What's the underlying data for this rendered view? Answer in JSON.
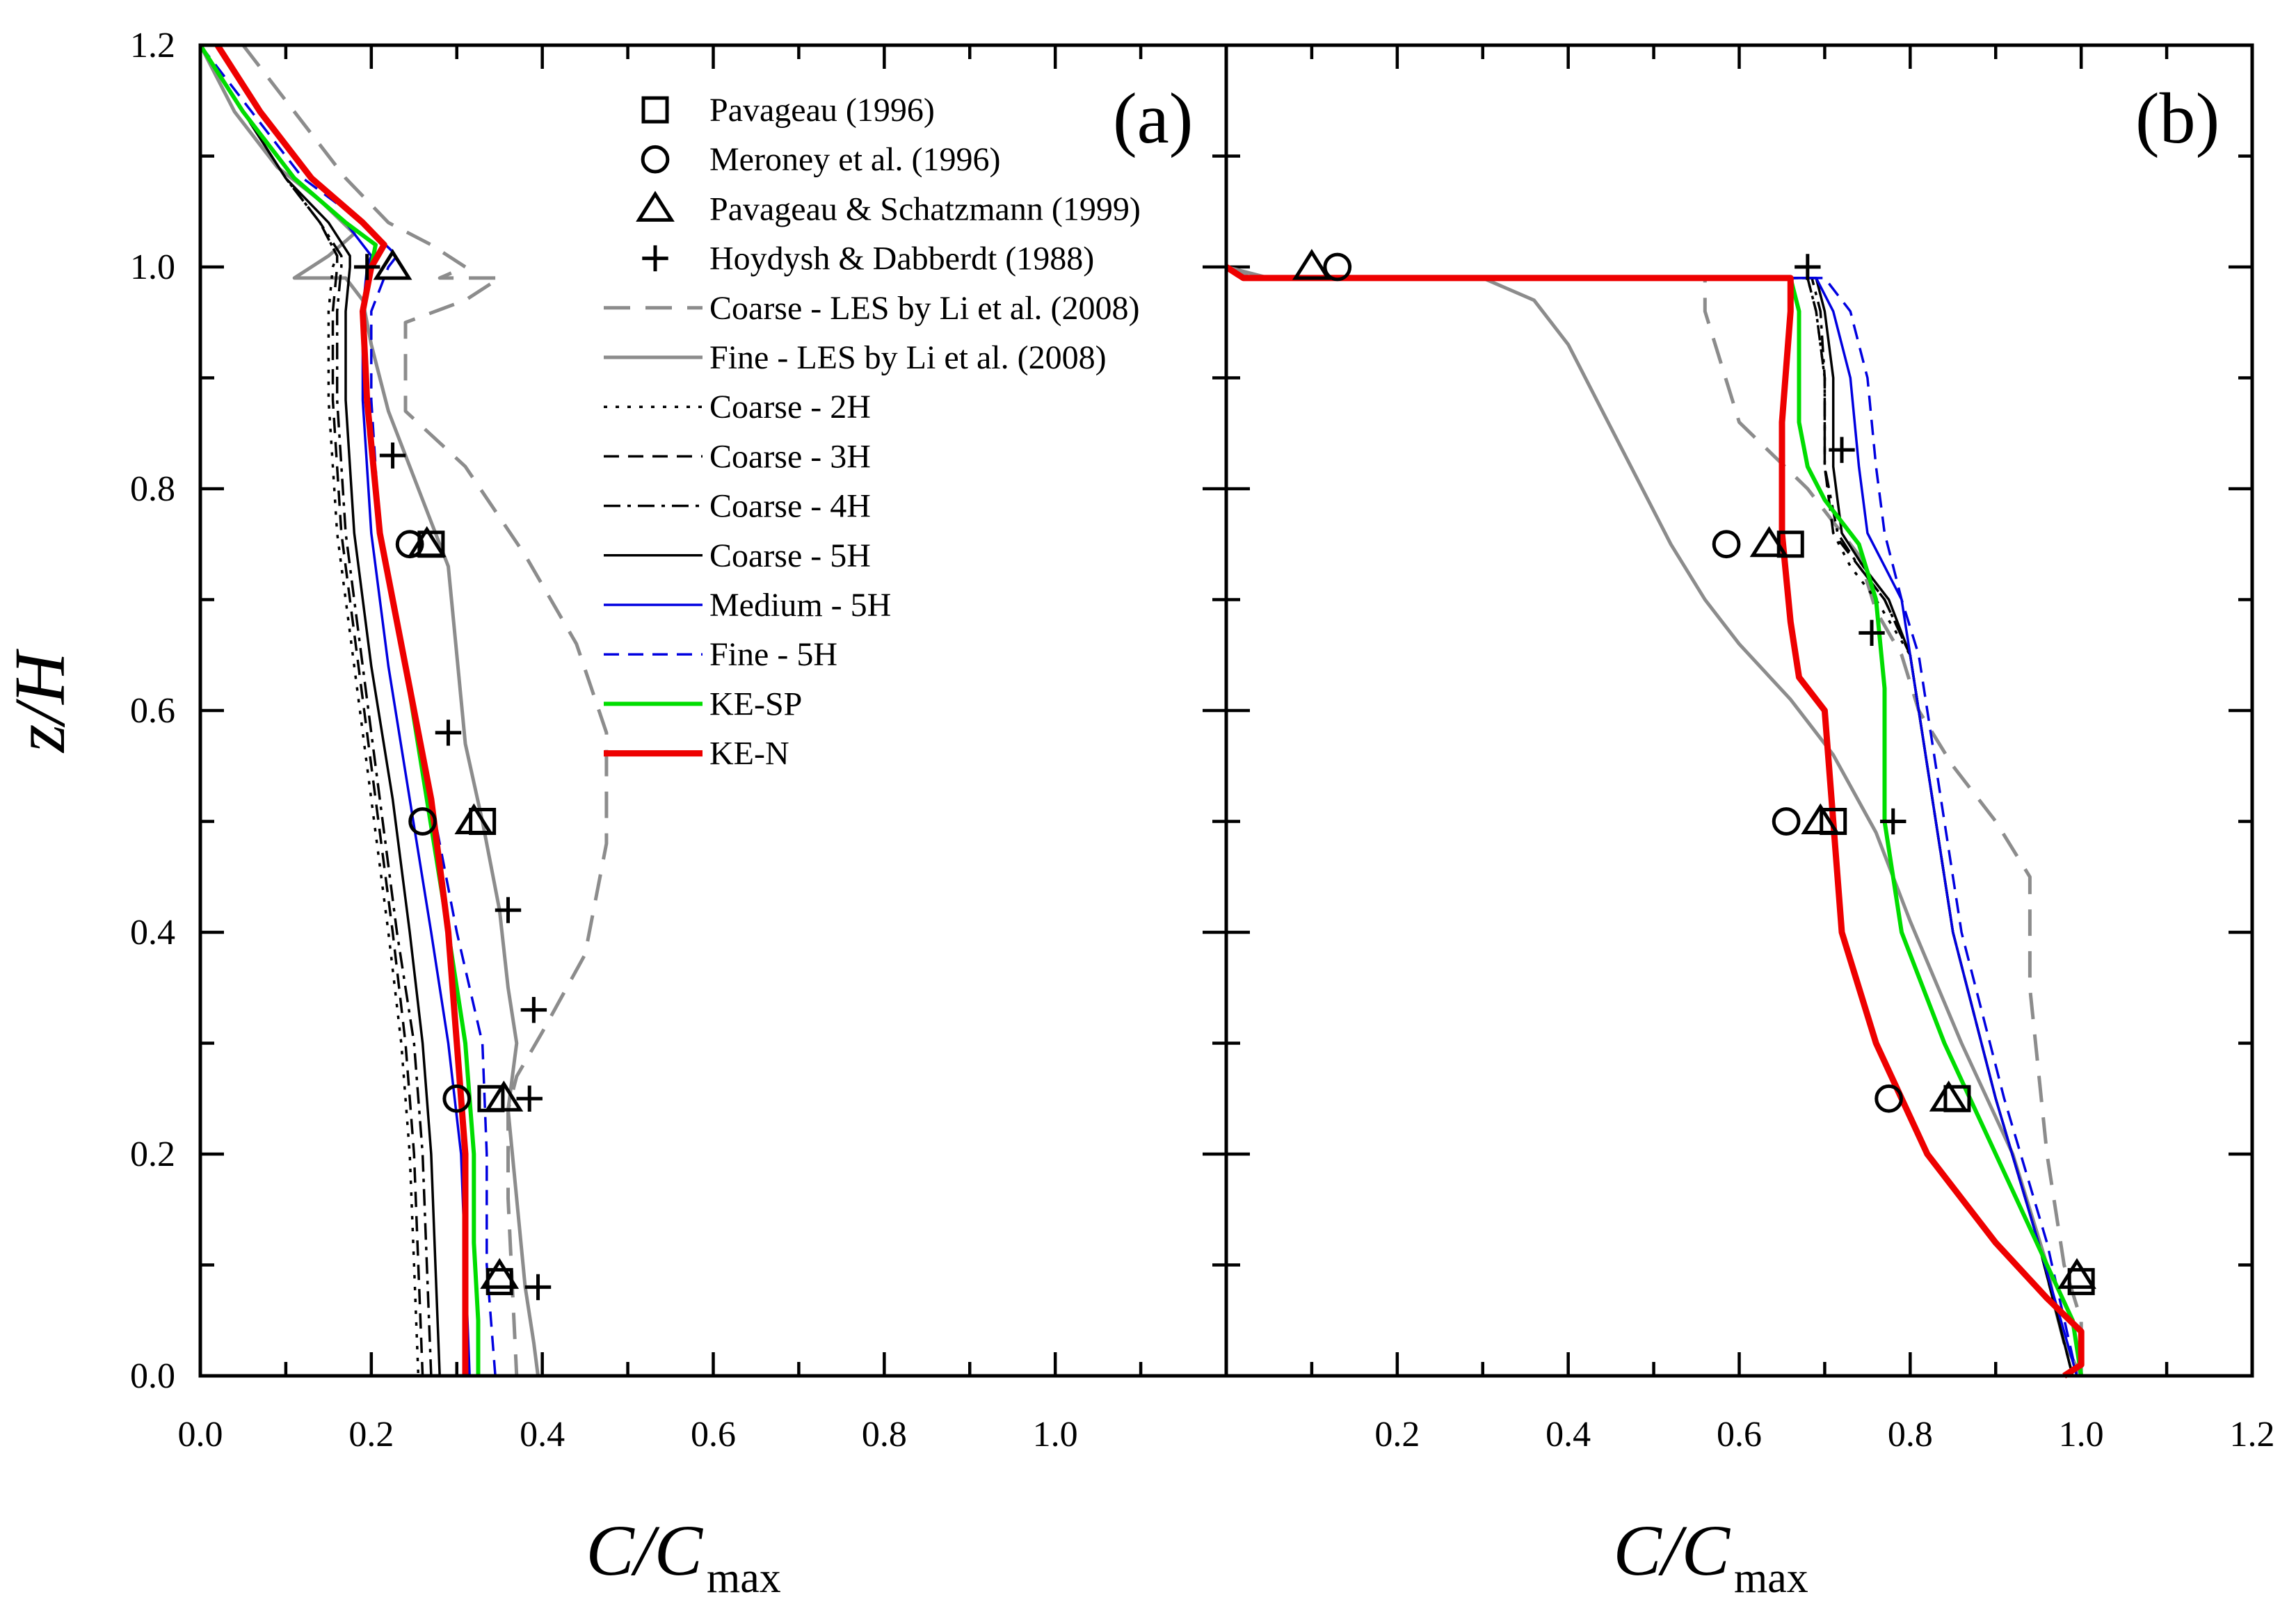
{
  "chart_data": [
    {
      "type": "line",
      "panel_label": "(a)",
      "xlabel": "C/C",
      "xlabel_subscript": "max",
      "ylabel": "z/H",
      "xlim": [
        0.0,
        1.2
      ],
      "ylim": [
        0.0,
        1.2
      ],
      "x_ticks": [
        "0.0",
        "0.2",
        "0.4",
        "0.6",
        "0.8",
        "1.0"
      ],
      "y_ticks": [
        "0.0",
        "0.2",
        "0.4",
        "0.6",
        "0.8",
        "1.0",
        "1.2"
      ],
      "legend": [
        {
          "name": "Pavageau (1996)",
          "kind": "marker",
          "marker": "square"
        },
        {
          "name": "Meroney et al. (1996)",
          "kind": "marker",
          "marker": "circle"
        },
        {
          "name": "Pavageau & Schatzmann (1999)",
          "kind": "marker",
          "marker": "triangle"
        },
        {
          "name": "Hoydysh & Dabberdt (1988)",
          "kind": "marker",
          "marker": "plus"
        },
        {
          "name": "Coarse - LES by Li et al. (2008)",
          "kind": "line",
          "color": "#8c8c8c",
          "dash": "long",
          "width": 5
        },
        {
          "name": "Fine - LES by Li et al. (2008)",
          "kind": "line",
          "color": "#8c8c8c",
          "dash": "solid",
          "width": 5
        },
        {
          "name": "Coarse - 2H",
          "kind": "line",
          "color": "#000000",
          "dash": "dot",
          "width": 3.5
        },
        {
          "name": "Coarse - 3H",
          "kind": "line",
          "color": "#000000",
          "dash": "dash",
          "width": 3.5
        },
        {
          "name": "Coarse - 4H",
          "kind": "line",
          "color": "#000000",
          "dash": "dashdot",
          "width": 3.5
        },
        {
          "name": "Coarse - 5H",
          "kind": "line",
          "color": "#000000",
          "dash": "solid",
          "width": 3.5
        },
        {
          "name": "Medium - 5H",
          "kind": "line",
          "color": "#0000e0",
          "dash": "solid",
          "width": 3.5
        },
        {
          "name": "Fine - 5H",
          "kind": "line",
          "color": "#0000e0",
          "dash": "dash",
          "width": 3.5
        },
        {
          "name": "KE-SP",
          "kind": "line",
          "color": "#00dd00",
          "dash": "solid",
          "width": 6
        },
        {
          "name": "KE-N",
          "kind": "line",
          "color": "#ee0000",
          "dash": "solid",
          "width": 9
        }
      ],
      "markers": {
        "Pavageau (1996)": [
          [
            0.27,
            0.75
          ],
          [
            0.33,
            0.5
          ],
          [
            0.34,
            0.25
          ],
          [
            0.35,
            0.085
          ]
        ],
        "Meroney et al. (1996)": [
          [
            0.245,
            0.75
          ],
          [
            0.26,
            0.5
          ],
          [
            0.3,
            0.25
          ]
        ],
        "Pavageau & Schatzmann (1999)": [
          [
            0.265,
            0.75
          ],
          [
            0.32,
            0.5
          ],
          [
            0.355,
            0.25
          ],
          [
            0.35,
            0.09
          ],
          [
            0.225,
            1.0
          ]
        ],
        "Hoydysh & Dabberdt (1988)": [
          [
            0.225,
            0.83
          ],
          [
            0.29,
            0.58
          ],
          [
            0.36,
            0.42
          ],
          [
            0.39,
            0.33
          ],
          [
            0.385,
            0.25
          ],
          [
            0.395,
            0.08
          ],
          [
            0.195,
            1.0
          ]
        ]
      },
      "series": [
        {
          "name": "Coarse - LES by Li et al. (2008)",
          "x": [
            0.05,
            0.11,
            0.17,
            0.22,
            0.27,
            0.31,
            0.28,
            0.35,
            0.31,
            0.24,
            0.24,
            0.31,
            0.38,
            0.44,
            0.475,
            0.475,
            0.45,
            0.4,
            0.37,
            0.36,
            0.36,
            0.365,
            0.37
          ],
          "y": [
            1.2,
            1.14,
            1.08,
            1.04,
            1.02,
            1.0,
            0.99,
            0.99,
            0.97,
            0.95,
            0.87,
            0.82,
            0.74,
            0.66,
            0.58,
            0.48,
            0.38,
            0.31,
            0.27,
            0.24,
            0.16,
            0.08,
            0.0
          ]
        },
        {
          "name": "Fine - LES by Li et al. (2008)",
          "x": [
            0.0,
            0.04,
            0.09,
            0.14,
            0.18,
            0.15,
            0.11,
            0.17,
            0.19,
            0.2,
            0.22,
            0.25,
            0.29,
            0.3,
            0.31,
            0.33,
            0.35,
            0.36,
            0.37,
            0.36,
            0.37,
            0.38,
            0.39,
            0.395
          ],
          "y": [
            1.2,
            1.14,
            1.09,
            1.06,
            1.03,
            1.01,
            0.99,
            0.99,
            0.97,
            0.93,
            0.87,
            0.81,
            0.73,
            0.65,
            0.57,
            0.5,
            0.42,
            0.35,
            0.3,
            0.24,
            0.16,
            0.08,
            0.03,
            0.0
          ]
        },
        {
          "name": "Coarse - 2H",
          "x": [
            0.0,
            0.05,
            0.1,
            0.14,
            0.16,
            0.155,
            0.15,
            0.15,
            0.16,
            0.18,
            0.2,
            0.22,
            0.235,
            0.245,
            0.25,
            0.255
          ],
          "y": [
            1.2,
            1.14,
            1.08,
            1.04,
            1.01,
            1.0,
            0.96,
            0.88,
            0.76,
            0.64,
            0.52,
            0.4,
            0.3,
            0.2,
            0.1,
            0.0
          ]
        },
        {
          "name": "Coarse - 3H",
          "x": [
            0.0,
            0.05,
            0.1,
            0.14,
            0.16,
            0.16,
            0.155,
            0.155,
            0.165,
            0.185,
            0.205,
            0.225,
            0.24,
            0.25,
            0.255,
            0.26
          ],
          "y": [
            1.2,
            1.14,
            1.08,
            1.04,
            1.01,
            1.0,
            0.96,
            0.88,
            0.76,
            0.64,
            0.52,
            0.4,
            0.3,
            0.2,
            0.1,
            0.0
          ]
        },
        {
          "name": "Coarse - 4H",
          "x": [
            0.0,
            0.05,
            0.1,
            0.14,
            0.165,
            0.165,
            0.16,
            0.16,
            0.17,
            0.19,
            0.21,
            0.23,
            0.25,
            0.26,
            0.265,
            0.27
          ],
          "y": [
            1.2,
            1.14,
            1.08,
            1.04,
            1.01,
            1.0,
            0.96,
            0.88,
            0.76,
            0.64,
            0.52,
            0.4,
            0.3,
            0.2,
            0.1,
            0.0
          ]
        },
        {
          "name": "Coarse - 5H",
          "x": [
            0.0,
            0.05,
            0.1,
            0.15,
            0.175,
            0.175,
            0.17,
            0.17,
            0.18,
            0.2,
            0.225,
            0.245,
            0.26,
            0.27,
            0.275,
            0.28
          ],
          "y": [
            1.2,
            1.14,
            1.08,
            1.04,
            1.01,
            1.0,
            0.96,
            0.88,
            0.76,
            0.64,
            0.52,
            0.4,
            0.3,
            0.2,
            0.1,
            0.0
          ]
        },
        {
          "name": "Medium - 5H",
          "x": [
            0.0,
            0.05,
            0.11,
            0.17,
            0.2,
            0.195,
            0.19,
            0.19,
            0.2,
            0.22,
            0.245,
            0.27,
            0.29,
            0.305,
            0.31,
            0.315
          ],
          "y": [
            1.2,
            1.14,
            1.08,
            1.04,
            1.01,
            1.0,
            0.96,
            0.88,
            0.76,
            0.64,
            0.52,
            0.4,
            0.3,
            0.2,
            0.1,
            0.0
          ]
        },
        {
          "name": "Fine - 5H",
          "x": [
            0.0,
            0.06,
            0.12,
            0.19,
            0.23,
            0.22,
            0.2,
            0.2,
            0.21,
            0.24,
            0.27,
            0.3,
            0.33,
            0.335,
            0.335,
            0.34,
            0.345
          ],
          "y": [
            1.2,
            1.14,
            1.08,
            1.04,
            1.01,
            1.0,
            0.96,
            0.88,
            0.76,
            0.64,
            0.52,
            0.4,
            0.3,
            0.2,
            0.1,
            0.05,
            0.0
          ]
        },
        {
          "name": "KE-SP",
          "x": [
            0.0,
            0.05,
            0.11,
            0.17,
            0.205,
            0.2,
            0.19,
            0.195,
            0.21,
            0.24,
            0.265,
            0.29,
            0.31,
            0.32,
            0.32,
            0.325,
            0.325
          ],
          "y": [
            1.2,
            1.14,
            1.08,
            1.04,
            1.02,
            1.0,
            0.96,
            0.88,
            0.76,
            0.64,
            0.52,
            0.4,
            0.3,
            0.2,
            0.12,
            0.05,
            0.0
          ]
        },
        {
          "name": "KE-N",
          "x": [
            0.02,
            0.07,
            0.13,
            0.19,
            0.215,
            0.2,
            0.19,
            0.195,
            0.21,
            0.24,
            0.27,
            0.29,
            0.3,
            0.31,
            0.31,
            0.31
          ],
          "y": [
            1.2,
            1.14,
            1.08,
            1.04,
            1.02,
            1.0,
            0.96,
            0.88,
            0.76,
            0.64,
            0.52,
            0.4,
            0.3,
            0.2,
            0.1,
            0.0
          ]
        }
      ]
    },
    {
      "type": "line",
      "panel_label": "(b)",
      "xlabel": "C/C",
      "xlabel_subscript": "max",
      "xlim": [
        0.0,
        1.2
      ],
      "ylim": [
        0.0,
        1.2
      ],
      "x_ticks": [
        "0.2",
        "0.4",
        "0.6",
        "0.8",
        "1.0",
        "1.2"
      ],
      "markers": {
        "Pavageau (1996)": [
          [
            0.66,
            0.75
          ],
          [
            0.71,
            0.5
          ],
          [
            0.855,
            0.25
          ],
          [
            1.0,
            0.085
          ]
        ],
        "Meroney et al. (1996)": [
          [
            0.585,
            0.75
          ],
          [
            0.655,
            0.5
          ],
          [
            0.775,
            0.25
          ],
          [
            0.13,
            1.0
          ]
        ],
        "Pavageau & Schatzmann (1999)": [
          [
            0.635,
            0.75
          ],
          [
            0.695,
            0.5
          ],
          [
            0.845,
            0.25
          ],
          [
            0.995,
            0.09
          ],
          [
            0.1,
            1.0
          ]
        ],
        "Hoydysh & Dabberdt (1988)": [
          [
            0.68,
            1.0
          ],
          [
            0.72,
            0.835
          ],
          [
            0.755,
            0.67
          ],
          [
            0.78,
            0.5
          ]
        ]
      },
      "series": [
        {
          "name": "Coarse - LES by Li et al. (2008)",
          "x": [
            0.0,
            0.03,
            0.56,
            0.56,
            0.6,
            0.68,
            0.74,
            0.76,
            0.79,
            0.81,
            0.85,
            0.9,
            0.94,
            0.94,
            0.96,
            0.98,
            1.0,
            1.0
          ],
          "y": [
            1.0,
            0.99,
            0.99,
            0.96,
            0.86,
            0.8,
            0.74,
            0.69,
            0.65,
            0.6,
            0.55,
            0.5,
            0.45,
            0.35,
            0.2,
            0.1,
            0.05,
            0.0
          ]
        },
        {
          "name": "Fine - LES by Li et al. (2008)",
          "x": [
            0.0,
            0.05,
            0.3,
            0.36,
            0.4,
            0.44,
            0.48,
            0.52,
            0.56,
            0.6,
            0.66,
            0.71,
            0.76,
            0.8,
            0.86,
            0.92,
            0.96,
            0.97,
            0.98,
            1.0
          ],
          "y": [
            1.0,
            0.99,
            0.99,
            0.97,
            0.93,
            0.87,
            0.81,
            0.75,
            0.7,
            0.66,
            0.61,
            0.56,
            0.49,
            0.41,
            0.3,
            0.2,
            0.1,
            0.06,
            0.03,
            0.0
          ]
        },
        {
          "name": "Coarse - 2H",
          "x": [
            0.0,
            0.02,
            0.68,
            0.69,
            0.7,
            0.7,
            0.71,
            0.73,
            0.76,
            0.8,
            0.82,
            0.85,
            0.9,
            0.95,
            0.99
          ],
          "y": [
            1.0,
            0.99,
            0.99,
            0.96,
            0.9,
            0.82,
            0.76,
            0.73,
            0.7,
            0.65,
            0.55,
            0.4,
            0.25,
            0.12,
            0.0
          ]
        },
        {
          "name": "Coarse - 3H",
          "x": [
            0.0,
            0.02,
            0.68,
            0.69,
            0.7,
            0.7,
            0.71,
            0.74,
            0.77,
            0.8,
            0.82,
            0.85,
            0.9,
            0.95,
            0.99
          ],
          "y": [
            1.0,
            0.99,
            0.99,
            0.96,
            0.9,
            0.82,
            0.76,
            0.73,
            0.7,
            0.65,
            0.55,
            0.4,
            0.25,
            0.12,
            0.0
          ]
        },
        {
          "name": "Coarse - 4H",
          "x": [
            0.0,
            0.02,
            0.685,
            0.695,
            0.7,
            0.7,
            0.715,
            0.74,
            0.77,
            0.8,
            0.82,
            0.85,
            0.9,
            0.95,
            0.99
          ],
          "y": [
            1.0,
            0.99,
            0.99,
            0.96,
            0.9,
            0.82,
            0.76,
            0.73,
            0.7,
            0.65,
            0.55,
            0.4,
            0.25,
            0.12,
            0.0
          ]
        },
        {
          "name": "Coarse - 5H",
          "x": [
            0.0,
            0.02,
            0.69,
            0.7,
            0.71,
            0.71,
            0.72,
            0.745,
            0.775,
            0.8,
            0.82,
            0.85,
            0.9,
            0.95,
            0.99
          ],
          "y": [
            1.0,
            0.99,
            0.99,
            0.96,
            0.9,
            0.82,
            0.76,
            0.73,
            0.7,
            0.65,
            0.55,
            0.4,
            0.25,
            0.12,
            0.0
          ]
        },
        {
          "name": "Medium - 5H",
          "x": [
            0.0,
            0.02,
            0.69,
            0.71,
            0.73,
            0.74,
            0.75,
            0.77,
            0.79,
            0.8,
            0.82,
            0.85,
            0.9,
            0.95,
            0.995
          ],
          "y": [
            1.0,
            0.99,
            0.99,
            0.96,
            0.9,
            0.82,
            0.76,
            0.73,
            0.7,
            0.65,
            0.55,
            0.4,
            0.25,
            0.12,
            0.0
          ]
        },
        {
          "name": "Fine - 5H",
          "x": [
            0.0,
            0.02,
            0.7,
            0.73,
            0.75,
            0.76,
            0.77,
            0.78,
            0.79,
            0.81,
            0.83,
            0.86,
            0.91,
            0.96,
            0.995
          ],
          "y": [
            1.0,
            0.99,
            0.99,
            0.96,
            0.9,
            0.82,
            0.76,
            0.73,
            0.7,
            0.65,
            0.55,
            0.4,
            0.25,
            0.12,
            0.0
          ]
        },
        {
          "name": "KE-SP",
          "x": [
            0.0,
            0.02,
            0.66,
            0.67,
            0.67,
            0.68,
            0.7,
            0.74,
            0.76,
            0.77,
            0.77,
            0.79,
            0.84,
            0.9,
            0.96,
            0.99,
            1.0
          ],
          "y": [
            1.0,
            0.99,
            0.99,
            0.96,
            0.86,
            0.82,
            0.79,
            0.75,
            0.7,
            0.62,
            0.5,
            0.4,
            0.3,
            0.2,
            0.1,
            0.05,
            0.0
          ]
        },
        {
          "name": "KE-N",
          "x": [
            0.0,
            0.02,
            0.66,
            0.66,
            0.65,
            0.65,
            0.66,
            0.67,
            0.7,
            0.71,
            0.72,
            0.76,
            0.82,
            0.9,
            0.96,
            1.0,
            1.0,
            0.98
          ],
          "y": [
            1.0,
            0.99,
            0.99,
            0.96,
            0.86,
            0.76,
            0.68,
            0.63,
            0.6,
            0.5,
            0.4,
            0.3,
            0.2,
            0.12,
            0.07,
            0.04,
            0.01,
            0.0
          ]
        }
      ]
    }
  ]
}
